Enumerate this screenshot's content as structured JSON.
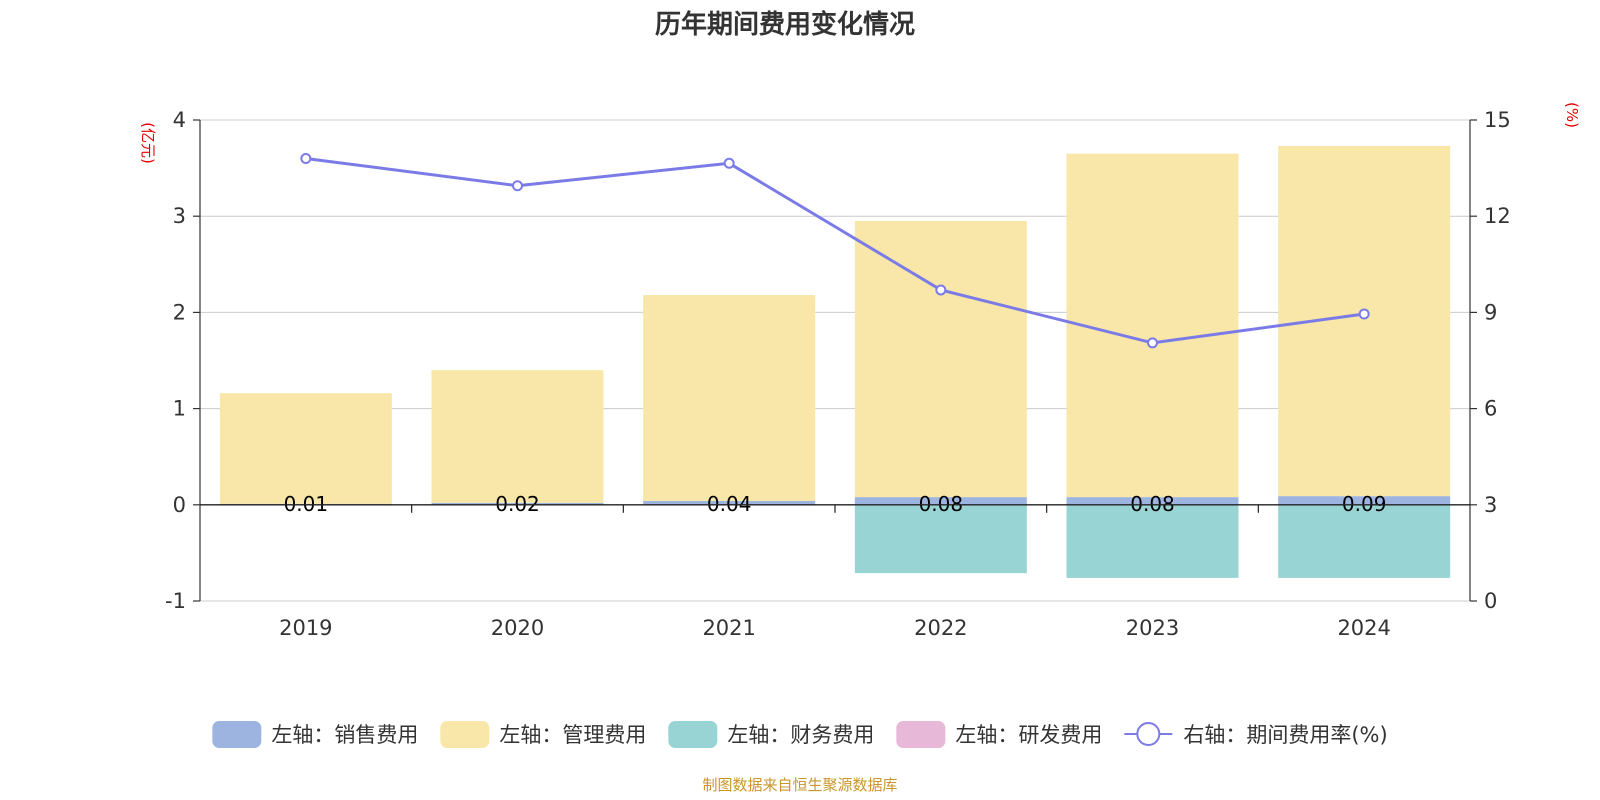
{
  "chart_data": {
    "type": "bar",
    "title": "历年期间费用变化情况",
    "categories": [
      "2019",
      "2020",
      "2021",
      "2022",
      "2023",
      "2024"
    ],
    "left_axis": {
      "unit_label": "(亿元)",
      "range": [
        -1,
        4
      ],
      "ticks": [
        "-1",
        "0",
        "1",
        "2",
        "3",
        "4"
      ]
    },
    "right_axis": {
      "unit_label": "(%)",
      "range": [
        0,
        15
      ],
      "ticks": [
        "0",
        "3",
        "6",
        "9",
        "12",
        "15"
      ]
    },
    "series": [
      {
        "name": "左轴：销售费用",
        "axis": "left",
        "kind": "bar-stacked",
        "color": "#9db4e0",
        "values": [
          0.01,
          0.02,
          0.04,
          0.08,
          0.08,
          0.09
        ],
        "data_labels": [
          "0.01",
          "0.02",
          "0.04",
          "0.08",
          "0.08",
          "0.09"
        ]
      },
      {
        "name": "左轴：管理费用",
        "axis": "left",
        "kind": "bar-stacked",
        "color": "#f8e7a8",
        "values": [
          1.15,
          1.38,
          2.14,
          2.87,
          3.57,
          3.64
        ]
      },
      {
        "name": "左轴：财务费用",
        "axis": "left",
        "kind": "bar-stacked",
        "color": "#98d4d4",
        "values": [
          0,
          0,
          0,
          -0.71,
          -0.76,
          -0.76
        ]
      },
      {
        "name": "左轴：研发费用",
        "axis": "left",
        "kind": "bar-stacked",
        "color": "#e8b8d8",
        "values": [
          0,
          0,
          0,
          0,
          0,
          0
        ]
      },
      {
        "name": "右轴：期间费用率(%)",
        "axis": "right",
        "kind": "line",
        "color": "#7b7be8",
        "values": [
          13.8,
          12.95,
          13.65,
          9.7,
          8.05,
          8.95
        ]
      }
    ],
    "grid": true,
    "legend_position": "bottom"
  },
  "footer": {
    "source": "制图数据来自恒生聚源数据库"
  }
}
